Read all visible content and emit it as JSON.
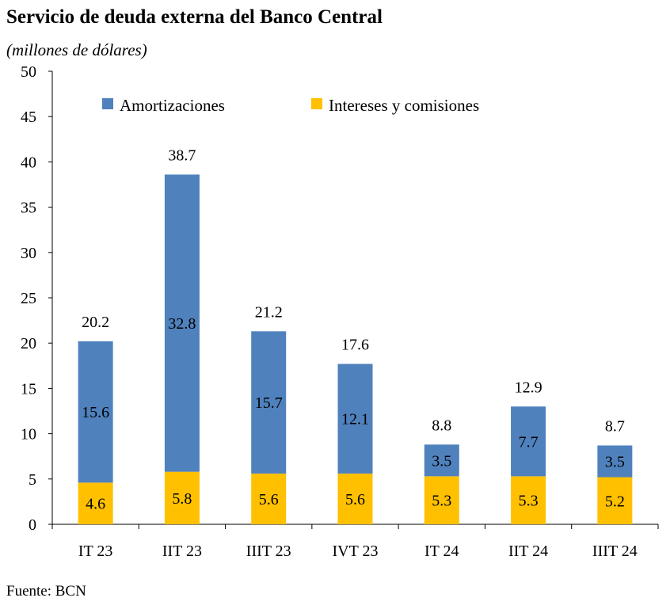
{
  "title": "Servicio de deuda externa del Banco Central",
  "subtitle": "(millones de dólares)",
  "source": "Fuente: BCN",
  "colors": {
    "amortizaciones": "#4F81BD",
    "intereses": "#FFC000",
    "axis": "#000000"
  },
  "chart_data": {
    "type": "bar",
    "stacked": true,
    "categories": [
      "IT 23",
      "IIT 23",
      "IIIT 23",
      "IVT 23",
      "IT 24",
      "IIT 24",
      "IIIT 24"
    ],
    "series": [
      {
        "name": "Intereses y comisiones",
        "values": [
          4.6,
          5.8,
          5.6,
          5.6,
          5.3,
          5.3,
          5.2
        ]
      },
      {
        "name": "Amortizaciones",
        "values": [
          15.6,
          32.8,
          15.7,
          12.1,
          3.5,
          7.7,
          3.5
        ]
      }
    ],
    "totals": [
      20.2,
      38.7,
      21.2,
      17.6,
      8.8,
      12.9,
      8.7
    ],
    "ylim": [
      0,
      50
    ],
    "yticks": [
      0,
      5,
      10,
      15,
      20,
      25,
      30,
      35,
      40,
      45,
      50
    ],
    "legend": [
      "Amortizaciones",
      "Intereses y comisiones"
    ],
    "legend_position": "top",
    "grid": false
  }
}
